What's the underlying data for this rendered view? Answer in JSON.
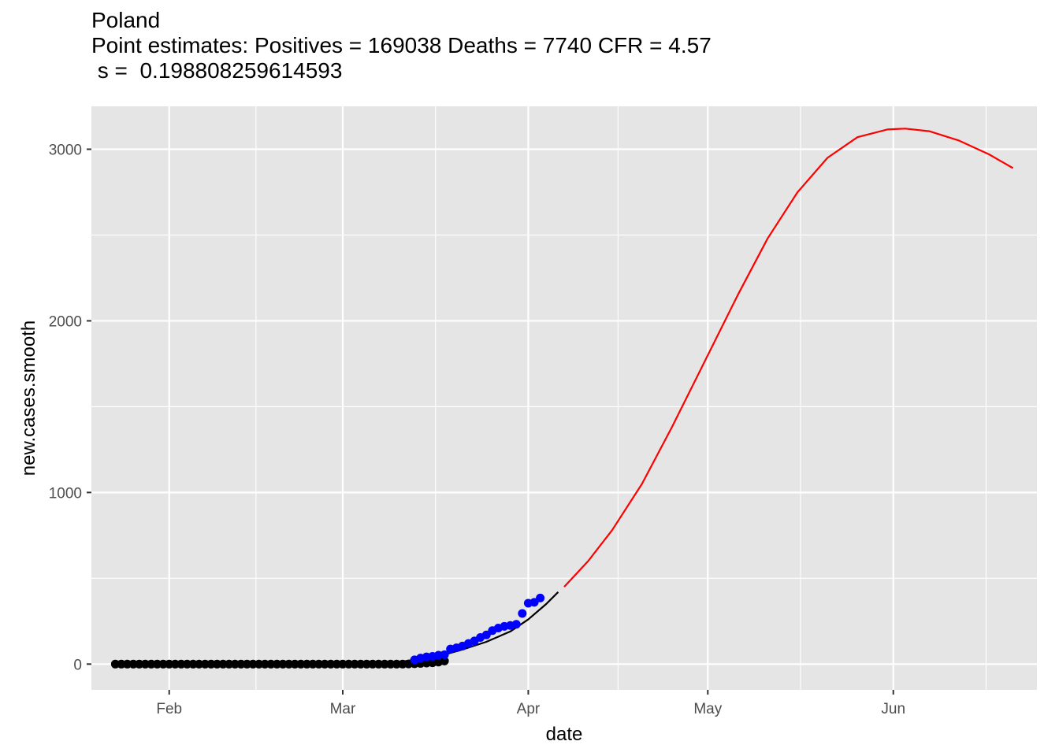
{
  "chart_data": {
    "type": "line",
    "title": "Poland",
    "subtitle_line1": "Point estimates: Positives = 169038 Deaths = 7740 CFR = 4.57",
    "subtitle_line2": " s =  0.198808259614593",
    "xlabel": "date",
    "ylabel": "new.cases.smooth",
    "x_ticks": [
      {
        "label": "Feb",
        "date": "2020-02-01"
      },
      {
        "label": "Mar",
        "date": "2020-03-01"
      },
      {
        "label": "Apr",
        "date": "2020-04-01"
      },
      {
        "label": "May",
        "date": "2020-05-01"
      },
      {
        "label": "Jun",
        "date": "2020-06-01"
      }
    ],
    "y_ticks": [
      0,
      1000,
      2000,
      3000
    ],
    "xlim": [
      "2020-01-19",
      "2020-06-25"
    ],
    "ylim": [
      -150,
      3250
    ],
    "grid": true,
    "panel_background": "#e5e5e5",
    "colors": {
      "observed_early": "#000000",
      "observed_recent": "#0000ff",
      "fit": "#000000",
      "projection": "#ff0000"
    },
    "series": [
      {
        "name": "",
        "kind": "points",
        "color": "#000000",
        "x_start": "2020-01-23",
        "values": [
          0,
          0,
          0,
          0,
          0,
          0,
          0,
          0,
          0,
          0,
          0,
          0,
          0,
          0,
          0,
          0,
          0,
          0,
          0,
          0,
          0,
          0,
          0,
          0,
          0,
          0,
          0,
          0,
          0,
          0,
          0,
          0,
          0,
          0,
          0,
          0,
          0,
          0,
          0,
          0,
          0,
          0,
          0,
          0,
          0,
          0,
          0,
          0,
          0,
          1,
          2,
          4,
          6,
          8,
          12,
          18
        ]
      },
      {
        "name": "",
        "kind": "points",
        "color": "#0000ff",
        "x_start": "2020-03-13",
        "values": [
          25,
          35,
          42,
          45,
          52,
          55,
          88,
          95,
          105,
          120,
          135,
          155,
          170,
          195,
          210,
          220,
          225,
          232,
          295,
          355,
          360,
          385
        ]
      },
      {
        "name": "",
        "kind": "line",
        "color": "#000000",
        "x": [
          "2020-03-09",
          "2020-03-13",
          "2020-03-17",
          "2020-03-21",
          "2020-03-25",
          "2020-03-29",
          "2020-04-01",
          "2020-04-04",
          "2020-04-06"
        ],
        "y": [
          5,
          25,
          45,
          85,
          130,
          190,
          260,
          350,
          420
        ]
      },
      {
        "name": "",
        "kind": "line",
        "color": "#ff0000",
        "x": [
          "2020-04-07",
          "2020-04-11",
          "2020-04-15",
          "2020-04-20",
          "2020-04-25",
          "2020-05-01",
          "2020-05-06",
          "2020-05-11",
          "2020-05-16",
          "2020-05-21",
          "2020-05-26",
          "2020-05-31",
          "2020-06-03",
          "2020-06-07",
          "2020-06-12",
          "2020-06-17",
          "2020-06-21"
        ],
        "y": [
          450,
          600,
          780,
          1050,
          1380,
          1800,
          2150,
          2480,
          2750,
          2950,
          3070,
          3115,
          3120,
          3105,
          3050,
          2970,
          2890
        ]
      }
    ]
  }
}
